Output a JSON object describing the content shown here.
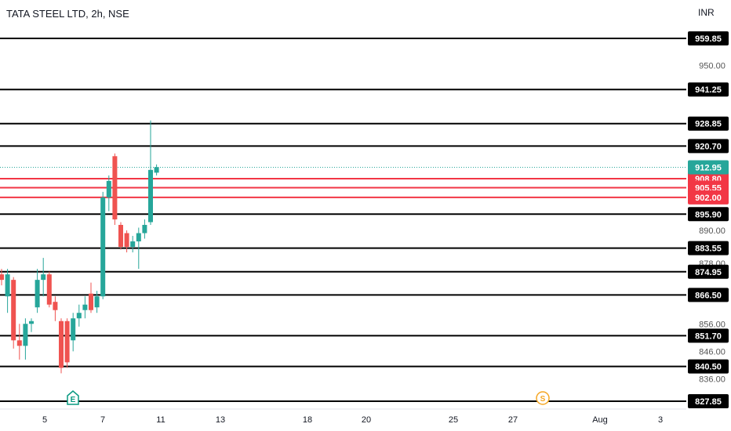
{
  "header": {
    "symbol": "TATA STEEL LTD, 2h, NSE",
    "currency": "INR"
  },
  "colors": {
    "up": "#26a69a",
    "down": "#ef5350",
    "support": "#000000",
    "resistance": "#f23645",
    "last": "#26a69a",
    "label_text": "#ffffff",
    "axis_text": "#555555"
  },
  "chart_data": {
    "type": "candlestick",
    "y_axis_ticks": [
      950.0,
      890.0,
      878.0,
      856.0,
      846.0,
      836.0
    ],
    "x_axis_ticks": [
      {
        "label": "5",
        "day": 5
      },
      {
        "label": "7",
        "day": 7
      },
      {
        "label": "11",
        "day": 11
      },
      {
        "label": "13",
        "day": 13
      },
      {
        "label": "18",
        "day": 18
      },
      {
        "label": "20",
        "day": 20
      },
      {
        "label": "25",
        "day": 25
      },
      {
        "label": "27",
        "day": 27
      },
      {
        "label": "Aug",
        "day": 32
      },
      {
        "label": "3",
        "day": 34
      }
    ],
    "last_price": 912.95,
    "horizontal_levels": [
      {
        "price": 959.85,
        "label": "959.85",
        "kind": "support"
      },
      {
        "price": 941.25,
        "label": "941.25",
        "kind": "support"
      },
      {
        "price": 928.85,
        "label": "928.85",
        "kind": "support"
      },
      {
        "price": 920.7,
        "label": "920.70",
        "kind": "support"
      },
      {
        "price": 908.8,
        "label": "908.80",
        "kind": "resistance"
      },
      {
        "price": 905.55,
        "label": "905.55",
        "kind": "resistance"
      },
      {
        "price": 902.0,
        "label": "902.00",
        "kind": "resistance"
      },
      {
        "price": 895.9,
        "label": "895.90",
        "kind": "support"
      },
      {
        "price": 883.55,
        "label": "883.55",
        "kind": "support"
      },
      {
        "price": 874.95,
        "label": "874.95",
        "kind": "support"
      },
      {
        "price": 866.5,
        "label": "866.50",
        "kind": "support"
      },
      {
        "price": 851.7,
        "label": "851.70",
        "kind": "support"
      },
      {
        "price": 840.5,
        "label": "840.50",
        "kind": "support"
      },
      {
        "price": 827.85,
        "label": "827.85",
        "kind": "support"
      }
    ],
    "candles": [
      {
        "day": 4.0,
        "o": 874,
        "h": 876,
        "l": 870,
        "c": 872
      },
      {
        "day": 4.2,
        "o": 866,
        "h": 876,
        "l": 860,
        "c": 874
      },
      {
        "day": 4.4,
        "o": 872,
        "h": 873,
        "l": 847,
        "c": 850
      },
      {
        "day": 4.6,
        "o": 850,
        "h": 856,
        "l": 843,
        "c": 848
      },
      {
        "day": 4.8,
        "o": 848,
        "h": 858,
        "l": 843,
        "c": 856
      },
      {
        "day": 5.0,
        "o": 856,
        "h": 858,
        "l": 853,
        "c": 857
      },
      {
        "day": 5.2,
        "o": 862,
        "h": 876,
        "l": 860,
        "c": 872
      },
      {
        "day": 5.4,
        "o": 872,
        "h": 880,
        "l": 866,
        "c": 874
      },
      {
        "day": 5.6,
        "o": 874,
        "h": 875,
        "l": 862,
        "c": 863
      },
      {
        "day": 5.8,
        "o": 864,
        "h": 866,
        "l": 857,
        "c": 861
      },
      {
        "day": 6.0,
        "o": 857,
        "h": 858,
        "l": 838,
        "c": 840
      },
      {
        "day": 6.2,
        "o": 857,
        "h": 858,
        "l": 840,
        "c": 842
      },
      {
        "day": 6.4,
        "o": 850,
        "h": 860,
        "l": 846,
        "c": 858
      },
      {
        "day": 6.6,
        "o": 858,
        "h": 863,
        "l": 855,
        "c": 860
      },
      {
        "day": 6.8,
        "o": 861,
        "h": 866,
        "l": 858,
        "c": 863
      },
      {
        "day": 7.0,
        "o": 867,
        "h": 871,
        "l": 860,
        "c": 861
      },
      {
        "day": 7.2,
        "o": 862,
        "h": 868,
        "l": 860,
        "c": 866
      },
      {
        "day": 7.4,
        "o": 866,
        "h": 904,
        "l": 865,
        "c": 902
      },
      {
        "day": 7.6,
        "o": 902,
        "h": 910,
        "l": 897,
        "c": 908
      },
      {
        "day": 7.8,
        "o": 917,
        "h": 918,
        "l": 892,
        "c": 894
      },
      {
        "day": 8.0,
        "o": 892,
        "h": 893,
        "l": 883,
        "c": 884
      },
      {
        "day": 8.2,
        "o": 889,
        "h": 890,
        "l": 882,
        "c": 884
      },
      {
        "day": 8.4,
        "o": 884,
        "h": 888,
        "l": 882,
        "c": 886
      },
      {
        "day": 8.6,
        "o": 886,
        "h": 891,
        "l": 876,
        "c": 889
      },
      {
        "day": 8.8,
        "o": 889,
        "h": 894,
        "l": 887,
        "c": 892
      },
      {
        "day": 9.0,
        "o": 893,
        "h": 930,
        "l": 892,
        "c": 912
      },
      {
        "day": 9.2,
        "o": 911,
        "h": 914,
        "l": 910,
        "c": 913
      }
    ],
    "events": [
      {
        "day": 6.0,
        "label": "E",
        "kind": "earnings"
      },
      {
        "day": 28.0,
        "label": "S",
        "kind": "split"
      }
    ]
  }
}
